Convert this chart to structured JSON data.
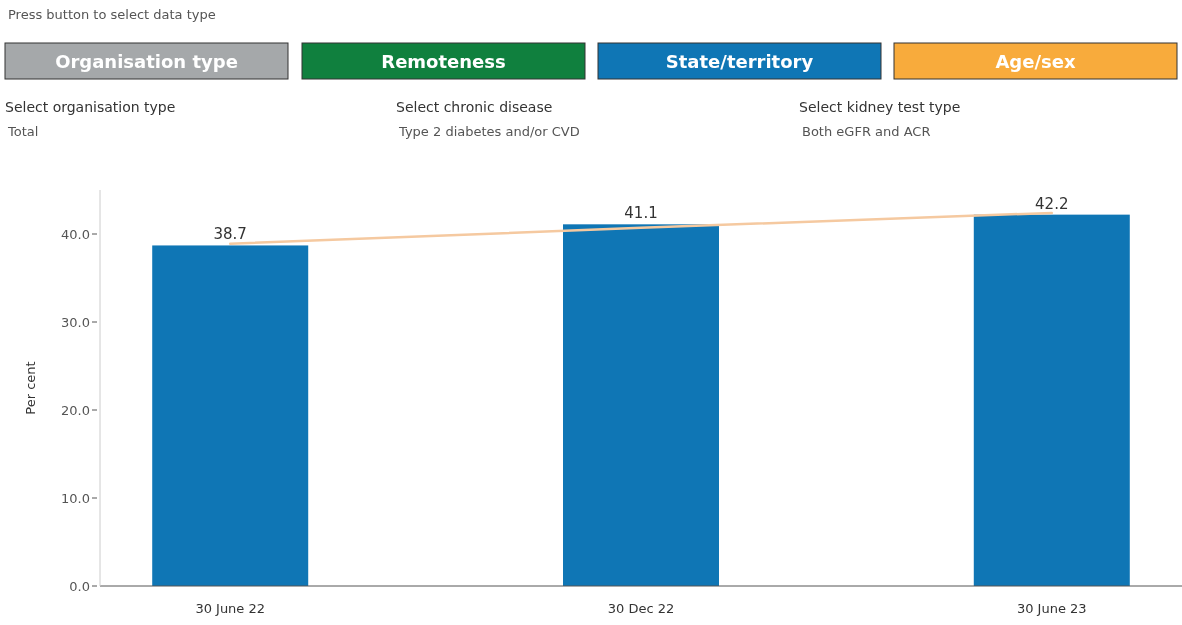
{
  "chart_data": {
    "type": "bar",
    "categories": [
      "30 June 22",
      "30 Dec 22",
      "30 June 23"
    ],
    "ylabel": "Per cent",
    "series": [
      {
        "color": "#0f76b5",
        "values": [
          38.7,
          41.1,
          42.2
        ],
        "value_labels": [
          "38.7",
          "41.1",
          "42.2"
        ]
      },
      {
        "type": "line",
        "color": "#f5c9a0",
        "values": [
          38.9,
          40.7,
          42.4
        ]
      }
    ],
    "ylim": [
      0,
      45
    ],
    "yticks": [
      {
        "value": 0,
        "label": "0.0"
      },
      {
        "value": 10,
        "label": "10.0"
      },
      {
        "value": 20,
        "label": "20.0"
      },
      {
        "value": 30,
        "label": "30.0"
      },
      {
        "value": 40,
        "label": "40.0"
      }
    ],
    "grid": false,
    "annotations": [
      "Press button to select data type",
      "Organisation type",
      "Remoteness",
      "State/territory",
      "Age/sex",
      "Select organisation type",
      "Total",
      "Select chronic disease",
      "Type 2 diabetes and/or CVD",
      "Select kidney test type",
      "Both eGFR and ACR"
    ]
  }
}
